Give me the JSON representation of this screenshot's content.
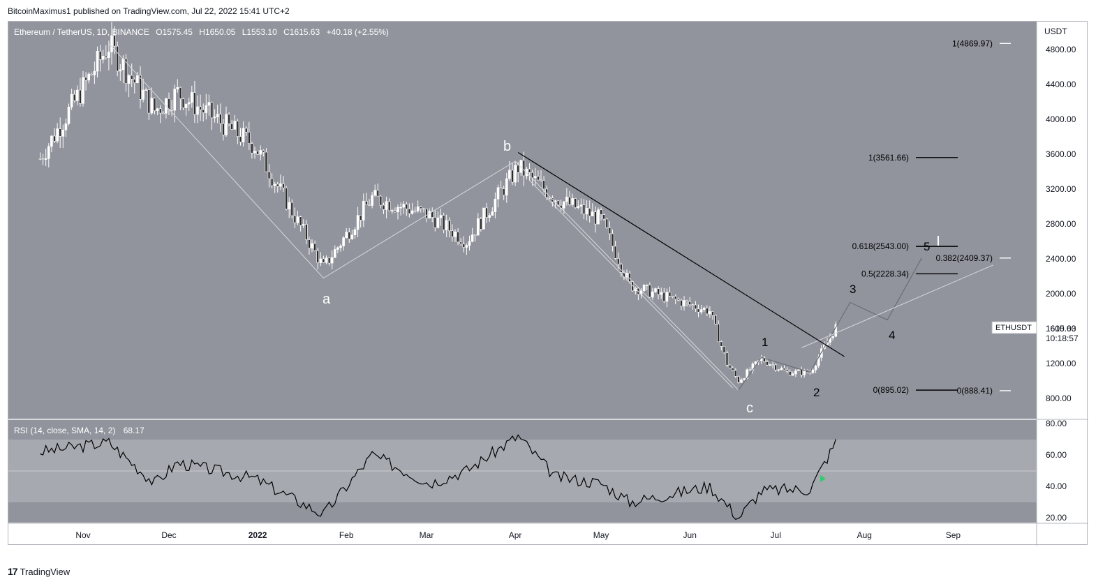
{
  "header": {
    "publish_line": "BitcoinMaximus1 published on TradingView.com, Jul 22, 2022 15:41 UTC+2"
  },
  "legend": {
    "symbol": "Ethereum / TetherUS, 1D, BINANCE",
    "ohlc": [
      {
        "key": "O",
        "value": "1575.45"
      },
      {
        "key": "H",
        "value": "1650.05"
      },
      {
        "key": "L",
        "value": "1553.10"
      },
      {
        "key": "C",
        "value": "1615.63"
      }
    ],
    "change": "+40.18 (+2.55%)"
  },
  "rsi_legend": {
    "title": "RSI (14, close, SMA, 14, 2)",
    "value": "68.17"
  },
  "price_axis": {
    "unit": "USDT",
    "ticks": [
      "4800.00",
      "4400.00",
      "4000.00",
      "3600.00",
      "3200.00",
      "2800.00",
      "2400.00",
      "2000.00",
      "1600.00",
      "1200.00",
      "800.00"
    ]
  },
  "rsi_axis": {
    "ticks": [
      "80.00",
      "60.00",
      "40.00",
      "20.00"
    ]
  },
  "time_axis": {
    "ticks": [
      "Nov",
      "Dec",
      "2022",
      "Feb",
      "Mar",
      "Apr",
      "May",
      "Jun",
      "Jul",
      "Aug",
      "Sep"
    ]
  },
  "price_tag": {
    "symbol": "ETHUSDT",
    "price": "1615.63",
    "countdown": "10:18:57"
  },
  "wave_labels": [
    "a",
    "b",
    "c",
    "1",
    "2",
    "3",
    "4",
    "5"
  ],
  "fib_labels": [
    {
      "text": "1(4869.97)"
    },
    {
      "text": "1(3561.66)"
    },
    {
      "text": "0.618(2543.00)"
    },
    {
      "text": "0.382(2409.37)"
    },
    {
      "text": "0.5(2228.34)"
    },
    {
      "text": "0(895.02)"
    },
    {
      "text": "0(888.41)"
    }
  ],
  "footer": {
    "brand": "TradingView",
    "mark": "17"
  },
  "colors": {
    "pane_bg": "#92949d",
    "rsi_band": "#a7a9b0",
    "axis_bg": "#ffffff",
    "candle": "#ffffff",
    "trendline": "#000000",
    "wave_path": "#c9cbd1",
    "rsi_line": "#000000"
  },
  "chart_data": {
    "type": "line",
    "title": "Ethereum / TetherUS, 1D, BINANCE",
    "price_scale": "USDT",
    "ylim": [
      600,
      5100
    ],
    "x": [
      "2021-10-17",
      "2021-11-10",
      "2021-11-26",
      "2021-12-04",
      "2021-12-31",
      "2022-01-24",
      "2022-02-10",
      "2022-03-02",
      "2022-03-15",
      "2022-04-02",
      "2022-04-15",
      "2022-05-01",
      "2022-05-11",
      "2022-05-20",
      "2022-06-08",
      "2022-06-14",
      "2022-06-18",
      "2022-06-26",
      "2022-07-05",
      "2022-07-13",
      "2022-07-22"
    ],
    "series": [
      {
        "values": [
          3550,
          4850,
          4100,
          4300,
          3700,
          2300,
          3100,
          2900,
          2600,
          3450,
          3100,
          2850,
          2100,
          2000,
          1800,
          1200,
          1000,
          1250,
          1100,
          1100,
          1615
        ]
      }
    ],
    "rsi": {
      "title": "RSI (14, close, SMA, 14, 2)",
      "ylim": [
        15,
        80
      ],
      "bands": [
        30,
        50,
        70
      ],
      "x": [
        "2021-10-17",
        "2021-11-10",
        "2021-11-26",
        "2021-12-04",
        "2021-12-31",
        "2022-01-24",
        "2022-02-10",
        "2022-03-02",
        "2022-03-15",
        "2022-04-02",
        "2022-04-15",
        "2022-05-01",
        "2022-05-11",
        "2022-05-20",
        "2022-06-08",
        "2022-06-14",
        "2022-06-18",
        "2022-06-26",
        "2022-07-05",
        "2022-07-13",
        "2022-07-22"
      ],
      "values": [
        62,
        68,
        42,
        55,
        45,
        22,
        60,
        42,
        50,
        72,
        46,
        42,
        30,
        33,
        40,
        28,
        20,
        37,
        38,
        38,
        68.17
      ]
    },
    "annotations": {
      "trendline": [
        [
          "2022-04-02",
          3620
        ],
        [
          "2022-07-25",
          1280
        ]
      ],
      "wave_path_abc": [
        [
          "2021-11-10",
          4870
        ],
        [
          "2022-01-24",
          2180
        ],
        [
          "2022-04-01",
          3520
        ],
        [
          "2022-06-18",
          895
        ]
      ],
      "wave_path_projection": [
        [
          "2022-06-18",
          895
        ],
        [
          "2022-06-26",
          1270
        ],
        [
          "2022-07-13",
          1100
        ],
        [
          "2022-07-27",
          1900
        ],
        [
          "2022-08-09",
          1700
        ],
        [
          "2022-08-21",
          2409
        ]
      ],
      "fib_levels": [
        4869.97,
        3561.66,
        2543.0,
        2409.37,
        2228.34,
        895.02,
        888.41
      ]
    }
  }
}
